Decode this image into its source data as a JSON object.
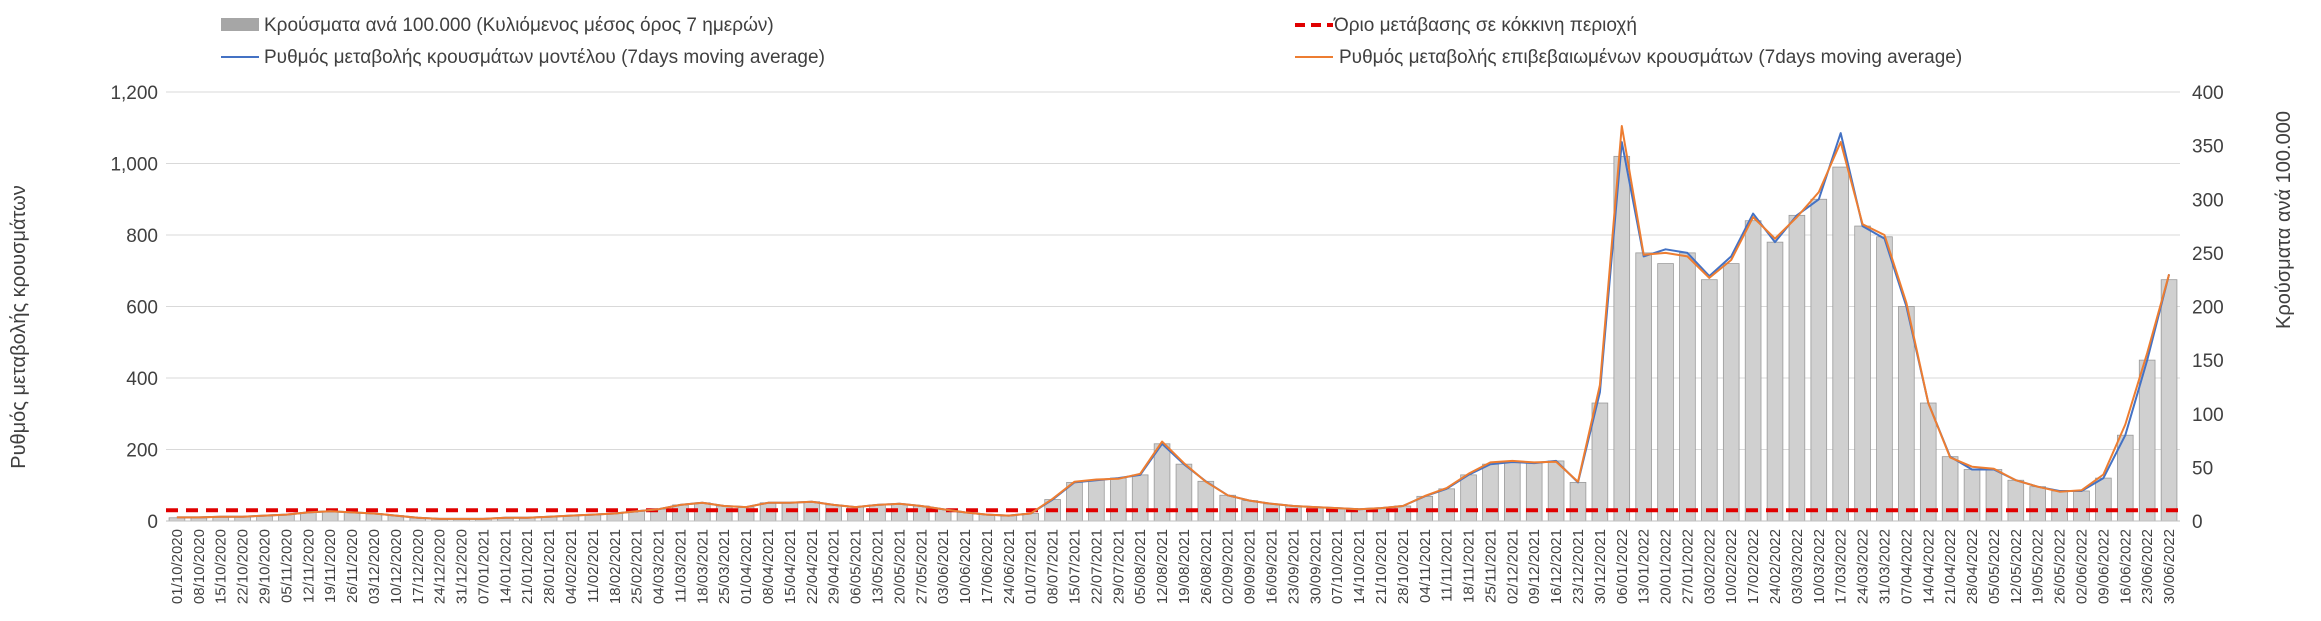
{
  "chart_data": {
    "type": "bar+line",
    "title": "",
    "ylabel_left": "Ρυθμός μεταβολής κρουσμάτων",
    "ylabel_right": "Κρούσματα ανά 100.000",
    "left_ylim": [
      0,
      1200
    ],
    "left_ticks": [
      "0",
      "200",
      "400",
      "600",
      "800",
      "1,000",
      "1,200"
    ],
    "right_ylim": [
      0,
      400
    ],
    "right_ticks": [
      "0",
      "50",
      "100",
      "150",
      "200",
      "250",
      "300",
      "350",
      "400"
    ],
    "grid": true,
    "legend_position": "top",
    "legend": [
      {
        "key": "bars",
        "label": "Κρούσματα ανά 100.000 (Κυλιόμενος μέσος όρος 7 ημερών)"
      },
      {
        "key": "threshold",
        "label": "Όριο μετάβασης σε κόκκινη περιοχή"
      },
      {
        "key": "model",
        "label": "Ρυθμός μεταβολής κρουσμάτων μοντέλου (7days moving average)"
      },
      {
        "key": "confirmed",
        "label": "Ρυθμός μεταβολής επιβεβαιωμένων κρουσμάτων (7days moving average)"
      }
    ],
    "colors": {
      "bars": "#a6a6a6",
      "threshold": "#e00000",
      "model": "#4472c4",
      "confirmed": "#ed7d31"
    },
    "threshold_value_right_axis": 10,
    "x": [
      "01/10/2020",
      "08/10/2020",
      "15/10/2020",
      "22/10/2020",
      "29/10/2020",
      "05/11/2020",
      "12/11/2020",
      "19/11/2020",
      "26/11/2020",
      "03/12/2020",
      "10/12/2020",
      "17/12/2020",
      "24/12/2020",
      "31/12/2020",
      "07/01/2021",
      "14/01/2021",
      "21/01/2021",
      "28/01/2021",
      "04/02/2021",
      "11/02/2021",
      "18/02/2021",
      "25/02/2021",
      "04/03/2021",
      "11/03/2021",
      "18/03/2021",
      "25/03/2021",
      "01/04/2021",
      "08/04/2021",
      "15/04/2021",
      "22/04/2021",
      "29/04/2021",
      "06/05/2021",
      "13/05/2021",
      "20/05/2021",
      "27/05/2021",
      "03/06/2021",
      "10/06/2021",
      "17/06/2021",
      "24/06/2021",
      "01/07/2021",
      "08/07/2021",
      "15/07/2021",
      "22/07/2021",
      "29/07/2021",
      "05/08/2021",
      "12/08/2021",
      "19/08/2021",
      "26/08/2021",
      "02/09/2021",
      "09/09/2021",
      "16/09/2021",
      "23/09/2021",
      "30/09/2021",
      "07/10/2021",
      "14/10/2021",
      "21/10/2021",
      "28/10/2021",
      "04/11/2021",
      "11/11/2021",
      "18/11/2021",
      "25/11/2021",
      "02/12/2021",
      "09/12/2021",
      "16/12/2021",
      "23/12/2021",
      "30/12/2021",
      "06/01/2022",
      "13/01/2022",
      "20/01/2022",
      "27/01/2022",
      "03/02/2022",
      "10/02/2022",
      "17/02/2022",
      "24/02/2022",
      "03/03/2022",
      "10/03/2022",
      "17/03/2022",
      "24/03/2022",
      "31/03/2022",
      "07/04/2022",
      "14/04/2022",
      "21/04/2022",
      "28/04/2022",
      "05/05/2022",
      "12/05/2022",
      "19/05/2022",
      "26/05/2022",
      "02/06/2022",
      "09/06/2022",
      "16/06/2022",
      "23/06/2022",
      "30/06/2022"
    ],
    "series": [
      {
        "key": "bars",
        "axis": "right",
        "type": "bar",
        "values": [
          3,
          3,
          4,
          4,
          5,
          6,
          8,
          9,
          8,
          7,
          5,
          3,
          2,
          2,
          2,
          3,
          3,
          4,
          5,
          6,
          7,
          9,
          11,
          15,
          17,
          14,
          13,
          17,
          17,
          18,
          15,
          13,
          15,
          16,
          14,
          11,
          8,
          6,
          5,
          7,
          20,
          36,
          38,
          40,
          43,
          72,
          53,
          37,
          24,
          19,
          16,
          14,
          13,
          12,
          11,
          12,
          14,
          23,
          30,
          43,
          53,
          55,
          54,
          56,
          36,
          110,
          340,
          250,
          240,
          250,
          225,
          240,
          280,
          260,
          285,
          300,
          330,
          275,
          265,
          200,
          110,
          60,
          48,
          48,
          38,
          32,
          28,
          28,
          40,
          80,
          150,
          225
        ]
      },
      {
        "key": "model",
        "axis": "left",
        "type": "line",
        "values": [
          10,
          10,
          12,
          12,
          15,
          18,
          24,
          27,
          24,
          21,
          15,
          9,
          6,
          6,
          6,
          9,
          9,
          12,
          15,
          18,
          21,
          27,
          33,
          45,
          51,
          42,
          39,
          51,
          51,
          54,
          45,
          39,
          45,
          48,
          42,
          33,
          24,
          18,
          15,
          21,
          60,
          108,
          114,
          120,
          129,
          216,
          159,
          111,
          72,
          57,
          48,
          42,
          39,
          36,
          33,
          36,
          42,
          69,
          90,
          129,
          159,
          165,
          162,
          168,
          108,
          360,
          1060,
          740,
          760,
          750,
          685,
          740,
          860,
          780,
          855,
          900,
          1085,
          825,
          790,
          600,
          330,
          180,
          144,
          144,
          114,
          96,
          84,
          84,
          120,
          240,
          450,
          690
        ]
      },
      {
        "key": "confirmed",
        "axis": "left",
        "type": "line",
        "values": [
          10,
          10,
          12,
          12,
          15,
          18,
          24,
          27,
          24,
          21,
          15,
          9,
          6,
          6,
          6,
          9,
          9,
          12,
          15,
          18,
          21,
          27,
          33,
          45,
          51,
          42,
          39,
          51,
          51,
          54,
          45,
          39,
          45,
          48,
          42,
          33,
          24,
          18,
          15,
          21,
          62,
          110,
          116,
          118,
          132,
          222,
          162,
          110,
          72,
          57,
          48,
          42,
          39,
          36,
          33,
          36,
          42,
          70,
          92,
          132,
          164,
          168,
          164,
          166,
          110,
          380,
          1105,
          745,
          750,
          740,
          680,
          730,
          850,
          790,
          850,
          920,
          1060,
          830,
          800,
          610,
          330,
          178,
          152,
          146,
          114,
          96,
          82,
          86,
          130,
          270,
          470,
          690
        ]
      }
    ]
  }
}
